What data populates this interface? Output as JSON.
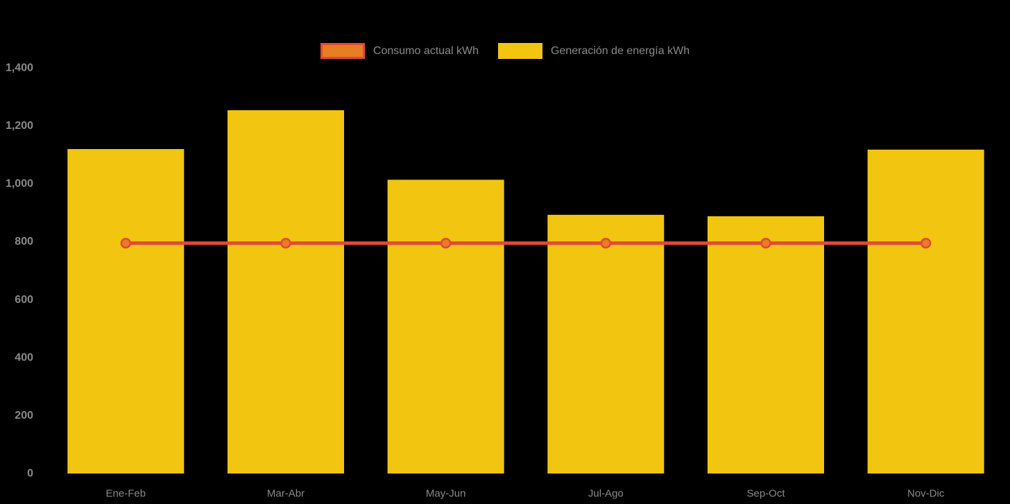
{
  "legend": {
    "position": "top",
    "items": [
      {
        "label": "Consumo actual kWh",
        "series": "consumo",
        "swatch": "orange-rect-red-border"
      },
      {
        "label": "Generación de energía kWh",
        "series": "generacion",
        "swatch": "yellow-rect"
      }
    ]
  },
  "colors": {
    "background": "#000000",
    "generation_bar": "#F2C511",
    "consumption_line": "#E4483B",
    "consumption_marker_fill": "#E67E22",
    "axis_text": "#8A8A8A"
  },
  "chart_data": {
    "type": "bar",
    "subtype": "bar-with-line-overlay",
    "title": "",
    "xlabel": "",
    "ylabel": "",
    "categories": [
      "Ene-Feb",
      "Mar-Abr",
      "May-Jun",
      "Jul-Ago",
      "Sep-Oct",
      "Nov-Dic"
    ],
    "series": [
      {
        "name": "Generación de energía kWh",
        "type": "bar",
        "color": "#F2C511",
        "values": [
          1120,
          1254,
          1014,
          893,
          888,
          1118
        ]
      },
      {
        "name": "Consumo actual kWh",
        "type": "line",
        "color": "#E4483B",
        "marker_fill": "#E67E22",
        "values": [
          795,
          795,
          795,
          795,
          795,
          795
        ]
      }
    ],
    "ylim": [
      0,
      1400
    ],
    "yticks": [
      0,
      200,
      400,
      600,
      800,
      1000,
      1200,
      1400
    ],
    "ytick_labels": [
      "0",
      "200",
      "400",
      "600",
      "800",
      "1,000",
      "1,200",
      "1,400"
    ],
    "grid": false,
    "legend_position": "top-center"
  }
}
